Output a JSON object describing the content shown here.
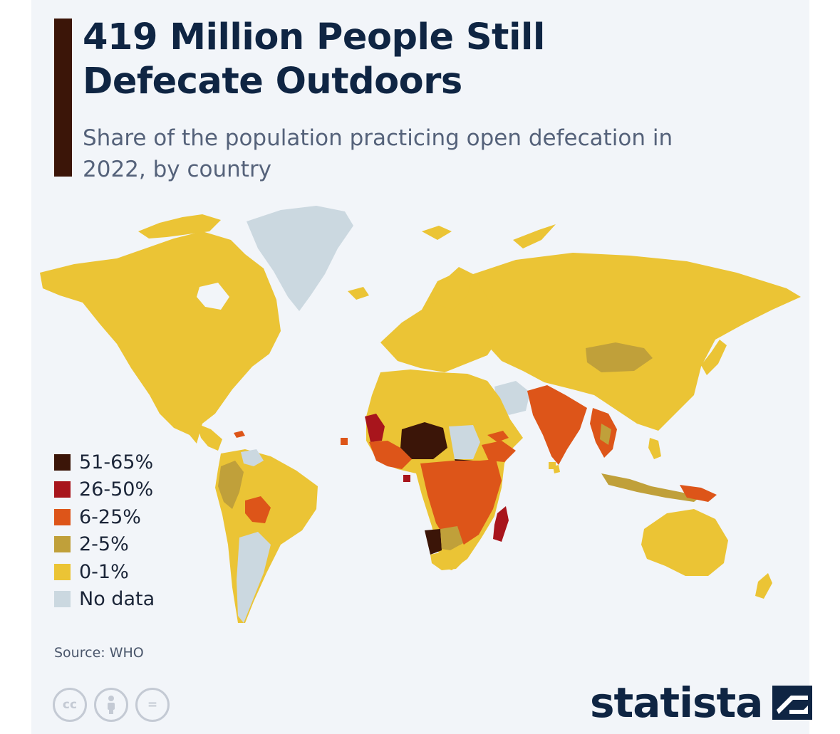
{
  "header": {
    "title": "419 Million People Still Defecate Outdoors",
    "subtitle": "Share of the population practicing open defecation in 2022, by country"
  },
  "legend": {
    "items": [
      {
        "label": "51-65%",
        "color": "#3b1508"
      },
      {
        "label": "26-50%",
        "color": "#a8151c"
      },
      {
        "label": "6-25%",
        "color": "#dd5519"
      },
      {
        "label": "2-5%",
        "color": "#c0a03a"
      },
      {
        "label": "0-1%",
        "color": "#ebc435"
      },
      {
        "label": "No data",
        "color": "#cbd8e0"
      }
    ]
  },
  "source": "Source: WHO",
  "brand": {
    "name": "statista"
  },
  "license_icons": [
    "cc-icon",
    "attribution-icon",
    "no-derivatives-icon"
  ],
  "colors": {
    "background": "#f2f5f9",
    "accent": "#3b1508",
    "title": "#0f2543",
    "subtitle": "#55627a"
  }
}
